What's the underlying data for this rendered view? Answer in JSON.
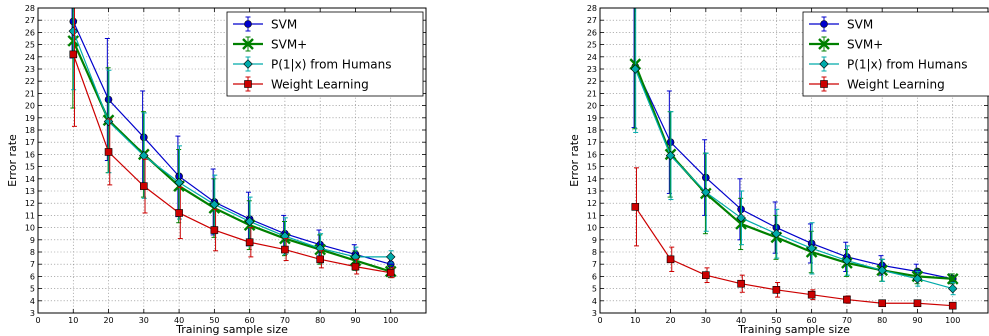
{
  "chart_data": [
    {
      "type": "line",
      "xlabel": "Training sample size",
      "ylabel": "Error rate",
      "xlim": [
        0,
        110
      ],
      "ylim": [
        3,
        28
      ],
      "xticks": [
        0,
        10,
        20,
        30,
        40,
        50,
        60,
        70,
        80,
        90,
        100
      ],
      "yticks": [
        3,
        4,
        5,
        6,
        7,
        8,
        9,
        10,
        11,
        12,
        13,
        14,
        15,
        16,
        17,
        18,
        19,
        20,
        21,
        22,
        23,
        24,
        25,
        26,
        27,
        28
      ],
      "grid": true,
      "legend_position": "top-right",
      "x": [
        10,
        20,
        30,
        40,
        50,
        60,
        70,
        80,
        90,
        100
      ],
      "series": [
        {
          "name": "SVM",
          "color": "#0000cc",
          "marker": "circle",
          "values": [
            26.9,
            20.5,
            17.4,
            14.2,
            12.1,
            10.7,
            9.5,
            8.6,
            7.8,
            7.0
          ],
          "errors": [
            3.0,
            5.0,
            3.8,
            3.3,
            2.7,
            2.2,
            1.5,
            1.2,
            0.8,
            0.6
          ]
        },
        {
          "name": "SVM+",
          "color": "#008000",
          "marker": "x",
          "values": [
            25.3,
            18.8,
            16.0,
            13.4,
            11.6,
            10.2,
            9.1,
            8.2,
            7.3,
            6.4
          ],
          "errors": [
            5.5,
            4.3,
            3.5,
            3.0,
            2.4,
            2.0,
            1.4,
            1.2,
            0.8,
            0.5
          ]
        },
        {
          "name": "P(1|x) from Humans",
          "color": "#00aaaa",
          "marker": "diamond",
          "values": [
            26.1,
            18.7,
            15.9,
            13.7,
            11.9,
            10.5,
            9.3,
            8.3,
            7.6,
            7.6
          ],
          "errors": [
            4.8,
            4.2,
            3.5,
            3.0,
            2.4,
            2.0,
            1.5,
            1.2,
            0.8,
            0.5
          ]
        },
        {
          "name": "Weight Learning",
          "color": "#cc0000",
          "marker": "square",
          "values": [
            24.2,
            16.2,
            13.4,
            11.2,
            9.8,
            8.8,
            8.2,
            7.4,
            6.8,
            6.3
          ],
          "errors": [
            5.9,
            2.7,
            2.2,
            2.1,
            1.7,
            1.2,
            0.9,
            0.7,
            0.6,
            0.4
          ]
        }
      ]
    },
    {
      "type": "line",
      "xlabel": "Training sample size",
      "ylabel": "Error rate",
      "xlim": [
        0,
        110
      ],
      "ylim": [
        3,
        28
      ],
      "xticks": [
        0,
        10,
        20,
        30,
        40,
        50,
        60,
        70,
        80,
        90,
        100
      ],
      "yticks": [
        3,
        4,
        5,
        6,
        7,
        8,
        9,
        10,
        11,
        12,
        13,
        14,
        15,
        16,
        17,
        18,
        19,
        20,
        21,
        22,
        23,
        24,
        25,
        26,
        27,
        28
      ],
      "grid": true,
      "legend_position": "top-right",
      "x": [
        10,
        20,
        30,
        40,
        50,
        60,
        70,
        80,
        90,
        100
      ],
      "series": [
        {
          "name": "SVM",
          "color": "#0000cc",
          "marker": "circle",
          "values": [
            23.2,
            17.0,
            14.1,
            11.5,
            10.0,
            8.7,
            7.6,
            6.9,
            6.4,
            5.8
          ],
          "errors": [
            5.0,
            4.2,
            3.1,
            2.5,
            2.1,
            1.6,
            1.2,
            0.8,
            0.6,
            0.4
          ]
        },
        {
          "name": "SVM+",
          "color": "#008000",
          "marker": "x",
          "values": [
            23.4,
            16.0,
            12.8,
            10.3,
            9.2,
            8.0,
            7.1,
            6.5,
            6.0,
            5.8
          ],
          "errors": [
            5.3,
            3.5,
            3.3,
            2.1,
            1.8,
            1.7,
            1.1,
            0.9,
            0.6,
            0.4
          ]
        },
        {
          "name": "P(1|x) from Humans",
          "color": "#00aaaa",
          "marker": "diamond",
          "values": [
            23.0,
            15.9,
            12.9,
            10.8,
            9.5,
            8.3,
            7.3,
            6.5,
            5.8,
            5.0
          ],
          "errors": [
            5.2,
            3.6,
            3.2,
            2.2,
            2.0,
            2.1,
            1.2,
            0.9,
            0.6,
            0.5
          ]
        },
        {
          "name": "Weight Learning",
          "color": "#cc0000",
          "marker": "square",
          "values": [
            11.7,
            7.4,
            6.1,
            5.4,
            4.9,
            4.5,
            4.1,
            3.8,
            3.8,
            3.6
          ],
          "errors": [
            3.2,
            1.0,
            0.6,
            0.7,
            0.6,
            0.4,
            0.3,
            0.2,
            0.2,
            0.2
          ]
        }
      ]
    }
  ]
}
